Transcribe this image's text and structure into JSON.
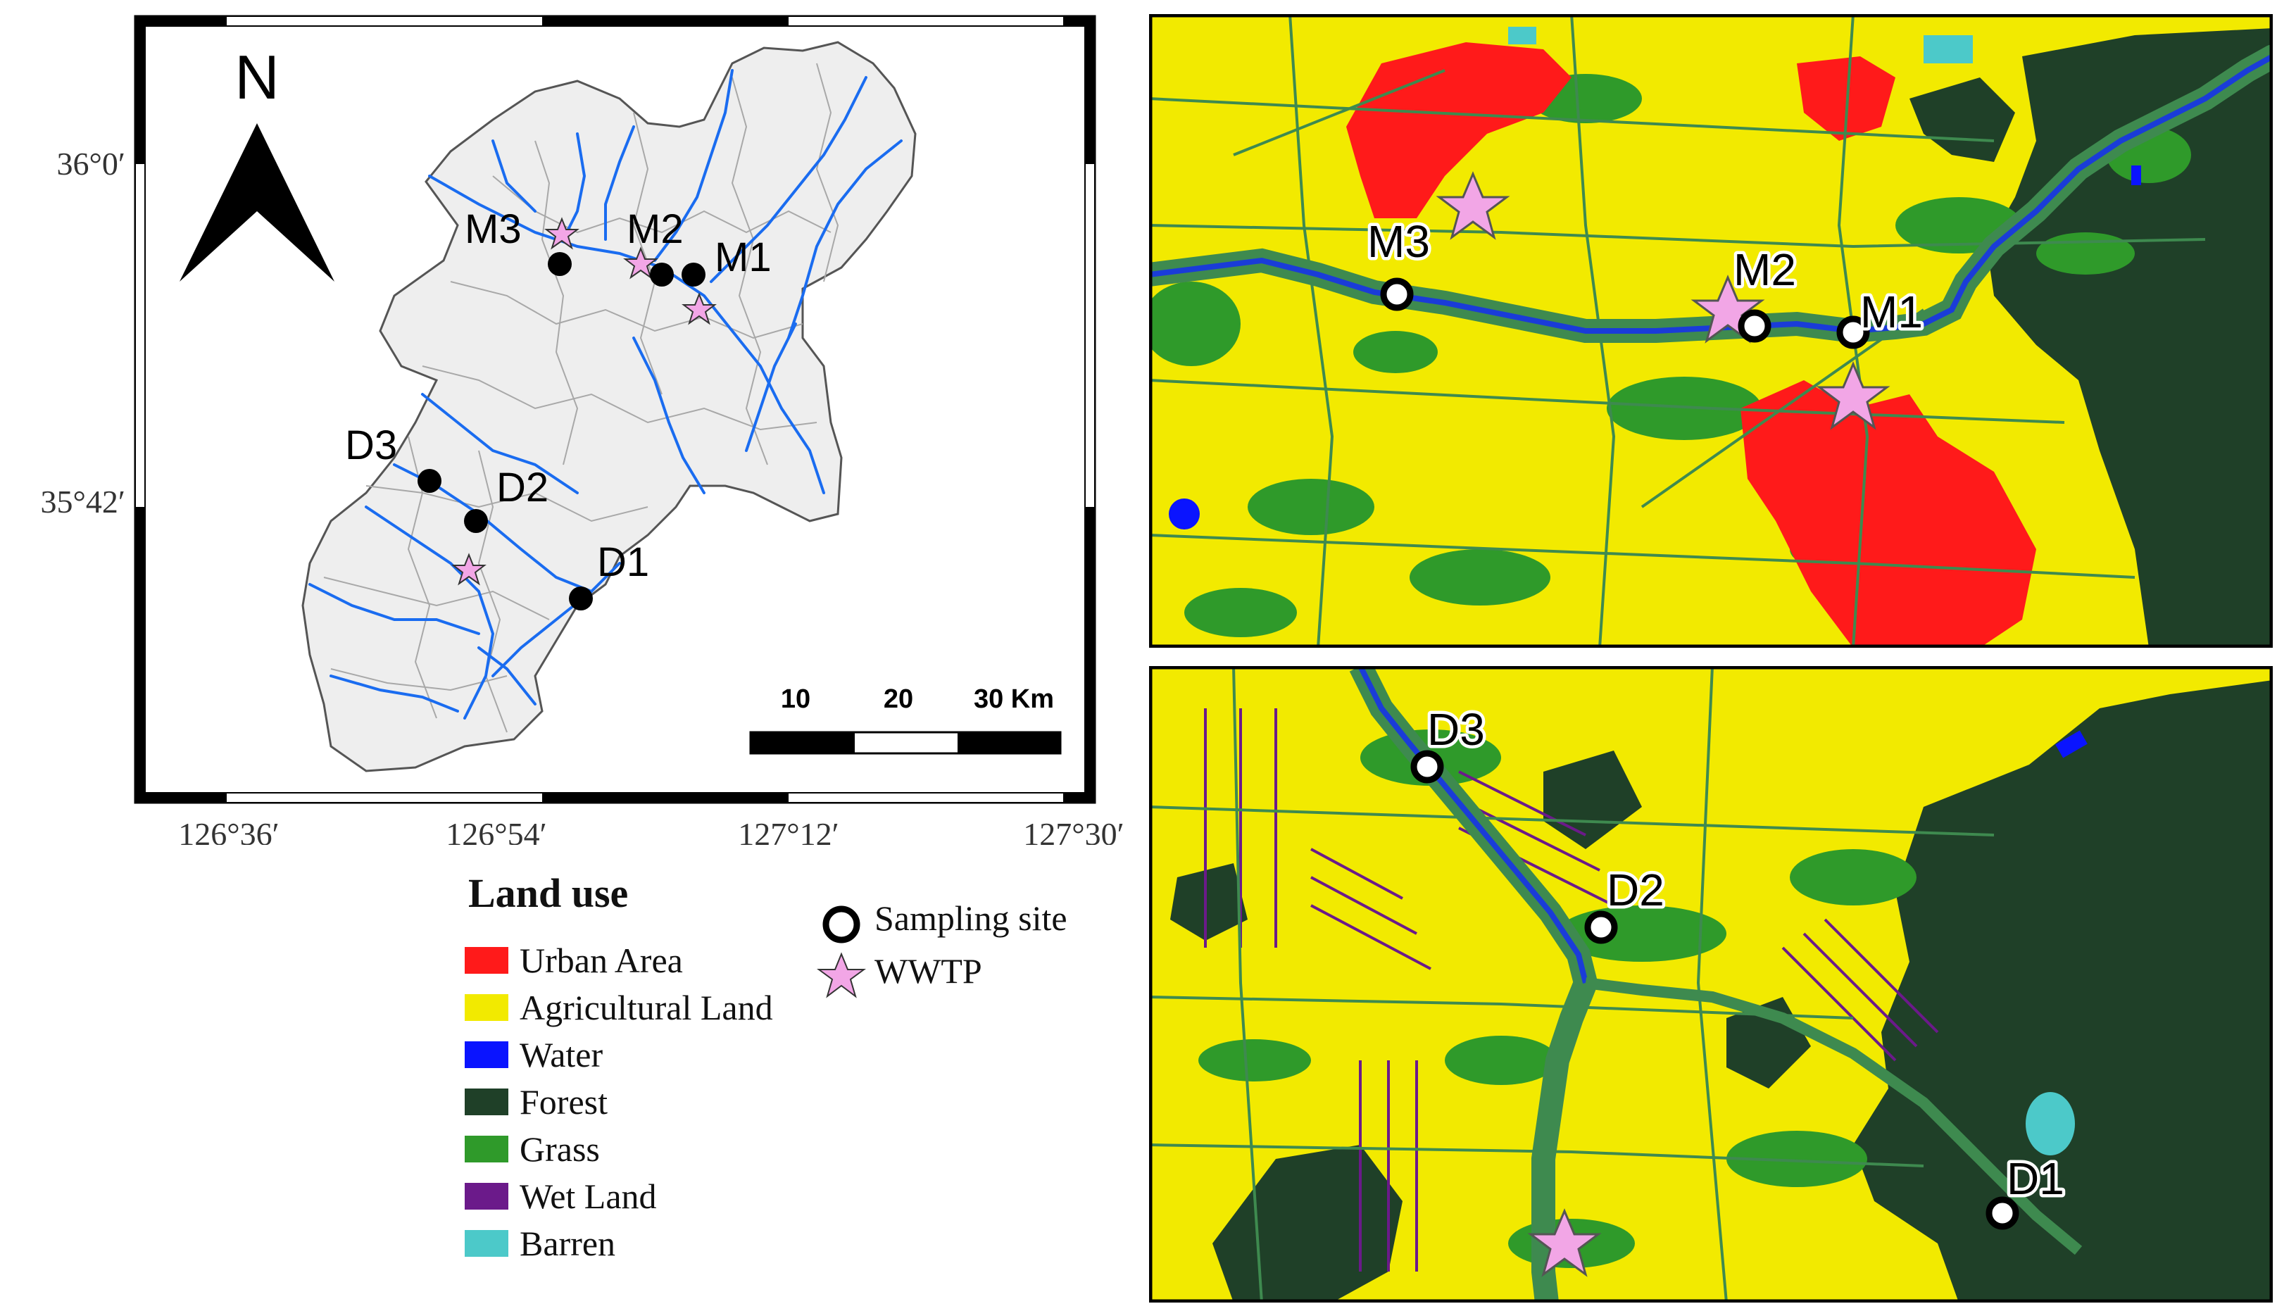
{
  "overview_map": {
    "north_label": "N",
    "lat_labels": [
      "36°0′",
      "35°42′"
    ],
    "lon_labels": [
      "126°36′",
      "126°54′",
      "127°12′",
      "127°30′"
    ],
    "scale_bar": {
      "labels": [
        "10",
        "20",
        "30 Km"
      ]
    },
    "sites": [
      "M3",
      "M2",
      "M1",
      "D3",
      "D2",
      "D1"
    ]
  },
  "detail_maps": {
    "upper": {
      "sites": [
        "M3",
        "M2",
        "M1"
      ]
    },
    "lower": {
      "sites": [
        "D3",
        "D2",
        "D1"
      ]
    }
  },
  "legend": {
    "title": "Land use",
    "items": [
      {
        "label": "Urban Area",
        "color": "#ff1a1a"
      },
      {
        "label": "Agricultural Land",
        "color": "#f2ea00"
      },
      {
        "label": "Water",
        "color": "#0a14ff"
      },
      {
        "label": "Forest",
        "color": "#1f4028"
      },
      {
        "label": "Grass",
        "color": "#2f9a2a"
      },
      {
        "label": "Wet Land",
        "color": "#6b1a8a"
      },
      {
        "label": "Barren",
        "color": "#4cc9c9"
      }
    ],
    "symbols": [
      {
        "label": "Sampling site",
        "icon": "sampling-site-circle-icon"
      },
      {
        "label": "WWTP",
        "icon": "wwtp-star-icon"
      }
    ]
  },
  "colors": {
    "stream": "#1a6cf0",
    "wwtp_star": "#f2a6e6",
    "basin_fill": "#efefef"
  }
}
